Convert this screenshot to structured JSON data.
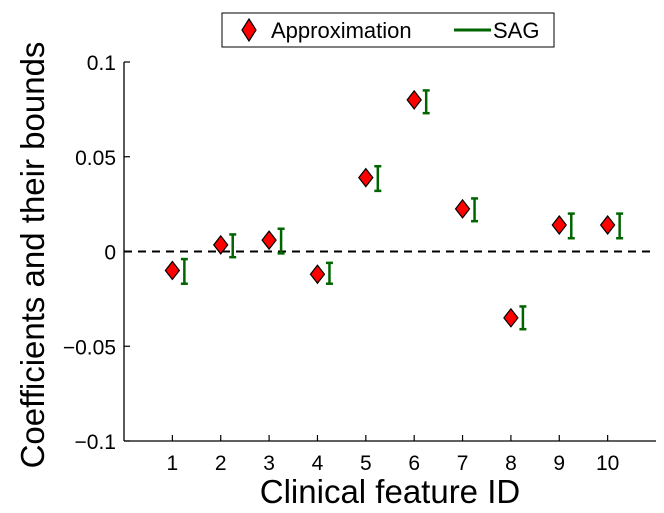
{
  "chart_data": {
    "type": "scatter",
    "title": "",
    "xlabel": "Clinical feature ID",
    "ylabel": "Coefficients and their bounds",
    "categories": [
      "1",
      "2",
      "3",
      "4",
      "5",
      "6",
      "7",
      "8",
      "9",
      "10"
    ],
    "xlim": [
      0,
      11
    ],
    "ylim": [
      -0.1,
      0.1
    ],
    "yticks": [
      0.1,
      0.05,
      0,
      -0.05,
      -0.1
    ],
    "ytick_labels": [
      "0.1",
      "0.05",
      "0",
      "−0.05",
      "−0.1"
    ],
    "zero_line": true,
    "grid": false,
    "legend_position": "top-center",
    "series": [
      {
        "name": "Approximation",
        "marker": "diamond",
        "color": "#ff0000",
        "values": [
          -0.01,
          0.0035,
          0.006,
          -0.012,
          0.039,
          0.08,
          0.0225,
          -0.035,
          0.014,
          0.014
        ]
      },
      {
        "name": "SAG",
        "marker": "errorbar",
        "color": "#006400",
        "lower": [
          -0.017,
          -0.003,
          -0.001,
          -0.017,
          0.032,
          0.073,
          0.016,
          -0.041,
          0.007,
          0.007
        ],
        "upper": [
          -0.004,
          0.009,
          0.012,
          -0.006,
          0.045,
          0.085,
          0.028,
          -0.029,
          0.02,
          0.02
        ]
      }
    ]
  }
}
